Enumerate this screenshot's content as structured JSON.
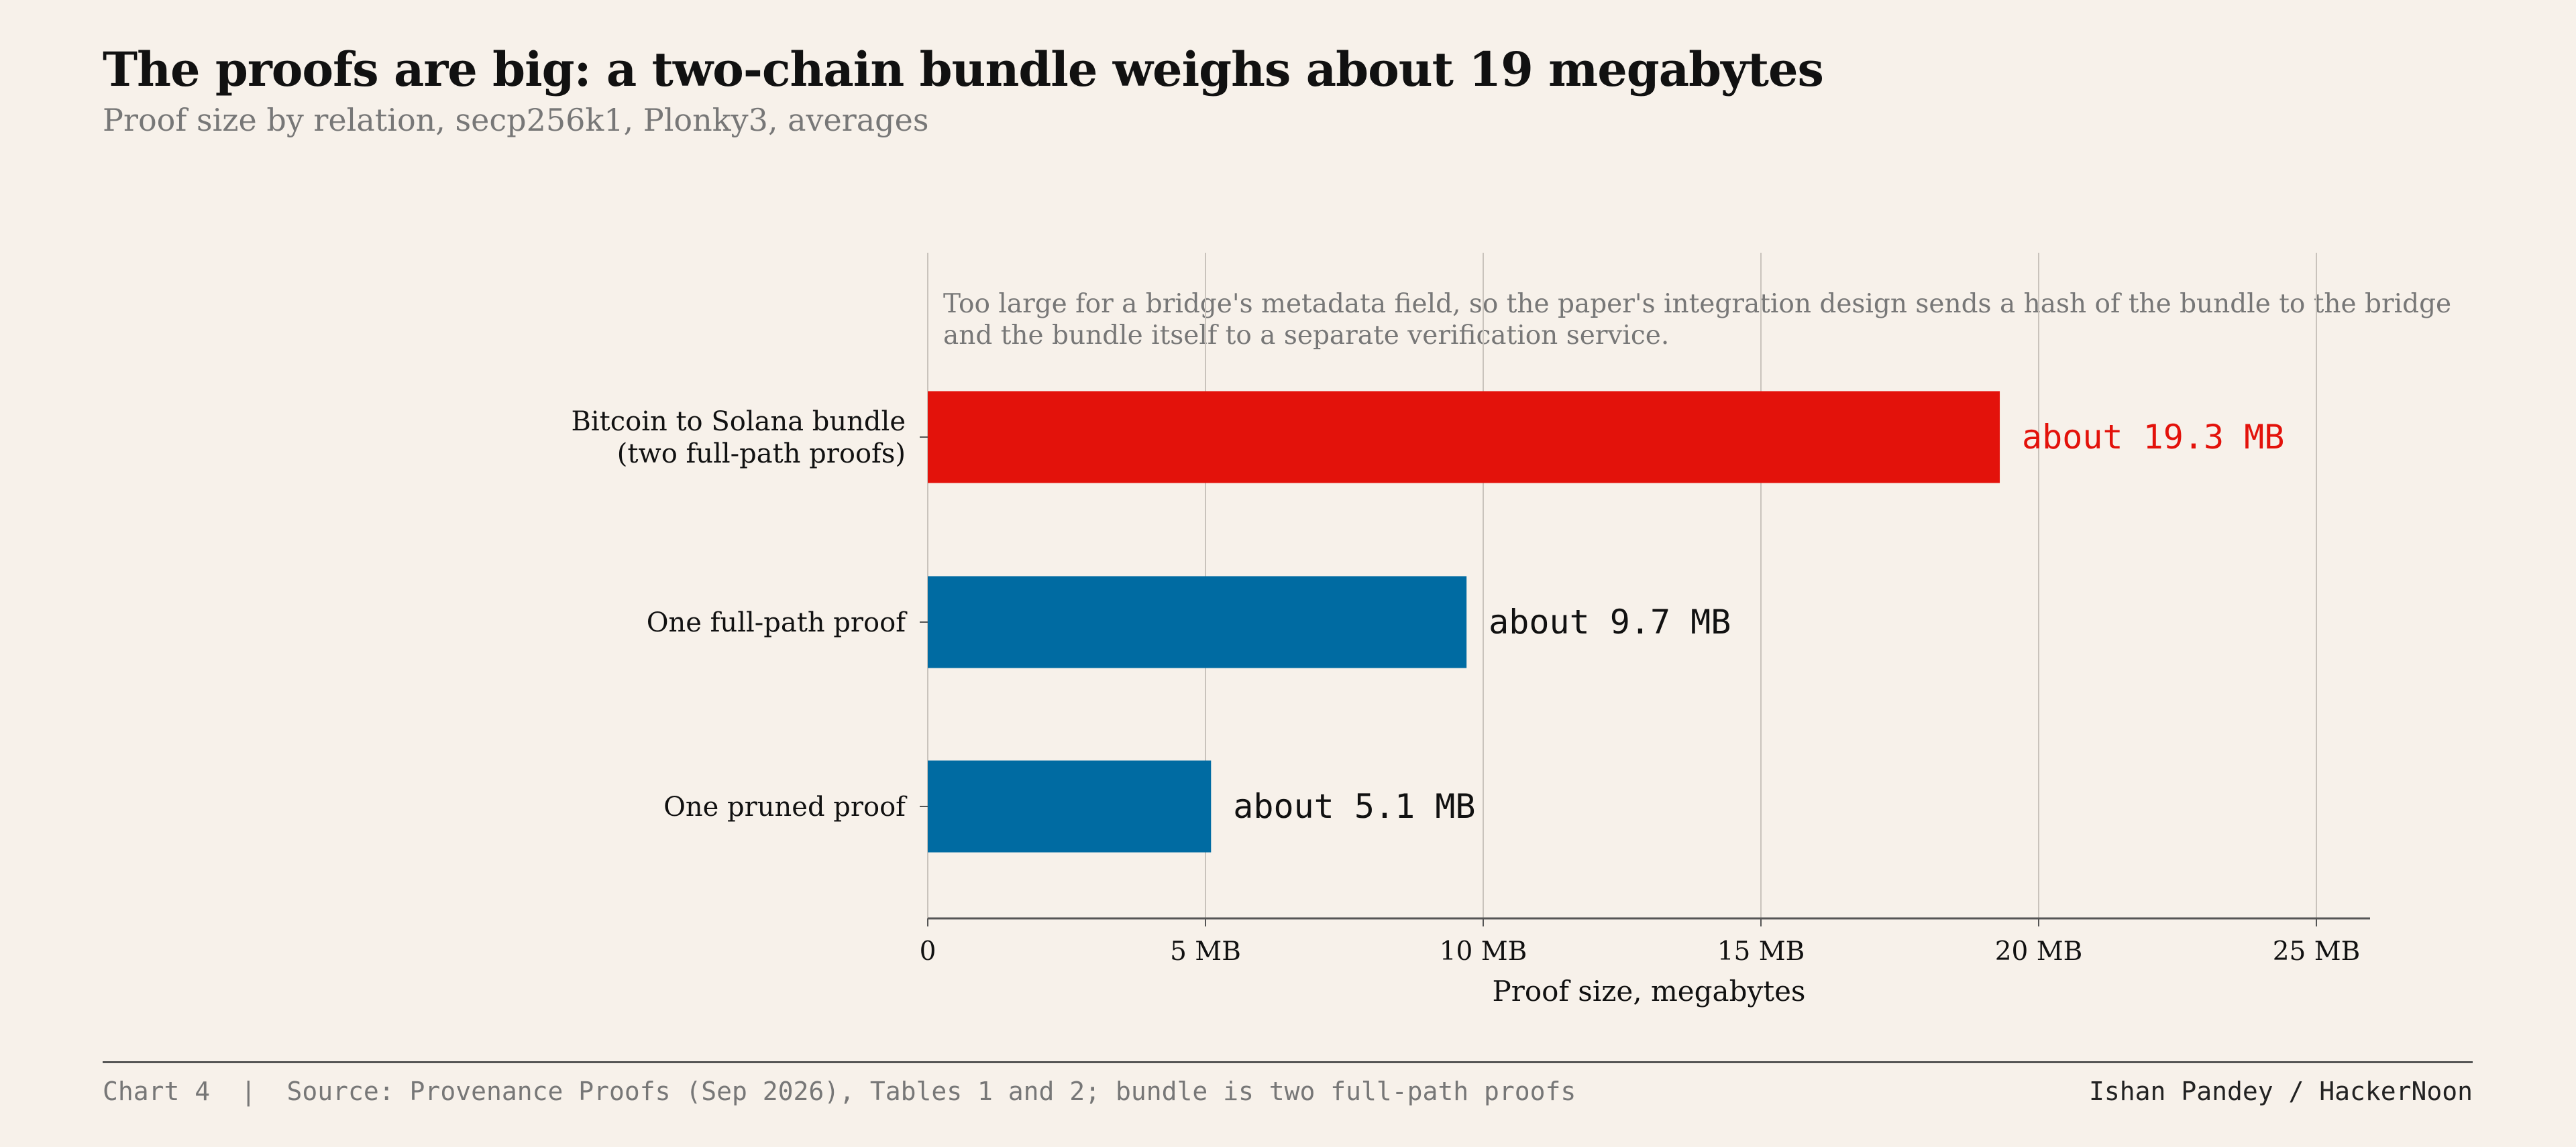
{
  "header": {
    "title": "The proofs are big: a two-chain bundle weighs about 19 megabytes",
    "subtitle": "Proof size by relation, secp256k1, Plonky3, averages"
  },
  "annotation": "Too large for a bridge's metadata field, so the paper's integration design sends a hash of the bundle to the bridge and the bundle itself to a separate verification service.",
  "footer": {
    "left": "Chart 4  |  Source: Provenance Proofs (Sep 2026), Tables 1 and 2; bundle is two full-path proofs",
    "right": "Ishan Pandey / HackerNoon"
  },
  "colors": {
    "highlight": "#e3120b",
    "bar": "#006ba2",
    "grid": "#c9c3bc",
    "axis": "#555555",
    "label_default": "#111111"
  },
  "chart_data": {
    "type": "bar",
    "orientation": "horizontal",
    "categories": [
      [
        "Bitcoin to Solana bundle",
        "(two full-path proofs)"
      ],
      [
        "One full-path proof"
      ],
      [
        "One pruned proof"
      ]
    ],
    "values": [
      19.3,
      9.7,
      5.1
    ],
    "data_labels": [
      "about 19.3 MB",
      "about 9.7 MB",
      "about 5.1 MB"
    ],
    "highlight_index": 0,
    "xlabel": "Proof size, megabytes",
    "ylabel": "",
    "xlim": [
      0,
      26
    ],
    "ticks": [
      0,
      5,
      10,
      15,
      20,
      25
    ],
    "tick_labels": [
      "0",
      "5 MB",
      "10 MB",
      "15 MB",
      "20 MB",
      "25 MB"
    ],
    "grid": true
  }
}
